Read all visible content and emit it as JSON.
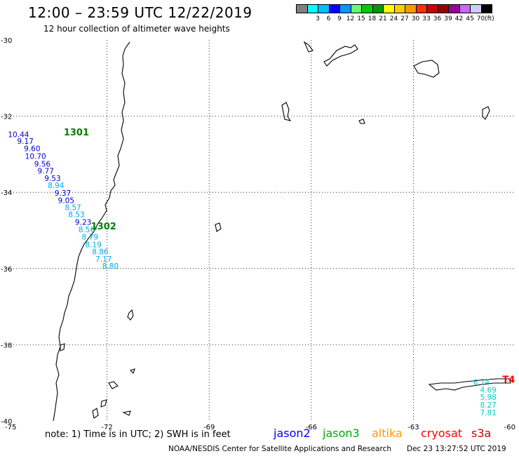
{
  "header": {
    "title": "12:00 – 23:59 UTC 12/22/2019",
    "subtitle": "12 hour collection of altimeter wave heights"
  },
  "colorbar": {
    "unit": "(ft)",
    "colors": [
      "#808080",
      "#00ffff",
      "#00bfff",
      "#0000ff",
      "#0099ff",
      "#66ff66",
      "#00cc00",
      "#009900",
      "#ffff00",
      "#ffcc00",
      "#ff9900",
      "#ff3300",
      "#cc0000",
      "#990000",
      "#990099",
      "#cc66ff",
      "#ccccff",
      "#000000"
    ],
    "labels": [
      "3",
      "6",
      "9",
      "12",
      "15",
      "18",
      "21",
      "24",
      "27",
      "30",
      "33",
      "36",
      "39",
      "42",
      "45",
      "70"
    ]
  },
  "axes": {
    "lat_labels": [
      "-30",
      "-32",
      "-34",
      "-36",
      "-38",
      "-40"
    ],
    "lon_labels": [
      "-75",
      "-72",
      "-69",
      "-66",
      "-63",
      "-60"
    ]
  },
  "chart_data": {
    "type": "scatter",
    "xlim": [
      -75,
      -60
    ],
    "ylim": [
      -40,
      -30
    ],
    "grid": true,
    "buoys": [
      {
        "id": "1301",
        "lon": -72.9,
        "lat": -32.5,
        "color": "#008000"
      },
      {
        "id": "1302",
        "lon": -72.1,
        "lat": -34.97,
        "color": "#008000"
      },
      {
        "id": "T4",
        "lon": -60.2,
        "lat": -39.0,
        "color": "#ff0000"
      }
    ],
    "observations": [
      {
        "value": "10.44",
        "lon": -74.6,
        "lat": -32.55,
        "color": "#0000cc"
      },
      {
        "value": "9.17",
        "lon": -74.4,
        "lat": -32.73,
        "color": "#0000cc"
      },
      {
        "value": "9.60",
        "lon": -74.2,
        "lat": -32.92,
        "color": "#0000cc"
      },
      {
        "value": "10.70",
        "lon": -74.1,
        "lat": -33.12,
        "color": "#0000cc"
      },
      {
        "value": "9.56",
        "lon": -73.9,
        "lat": -33.32,
        "color": "#0000cc"
      },
      {
        "value": "9.77",
        "lon": -73.8,
        "lat": -33.51,
        "color": "#0000cc"
      },
      {
        "value": "9.53",
        "lon": -73.6,
        "lat": -33.7,
        "color": "#0000cc"
      },
      {
        "value": "8.94",
        "lon": -73.5,
        "lat": -33.89,
        "color": "#00aaee"
      },
      {
        "value": "9.37",
        "lon": -73.3,
        "lat": -34.09,
        "color": "#0000cc"
      },
      {
        "value": "9.05",
        "lon": -73.2,
        "lat": -34.28,
        "color": "#0000cc"
      },
      {
        "value": "8.57",
        "lon": -73.0,
        "lat": -34.47,
        "color": "#00aaee"
      },
      {
        "value": "8.53",
        "lon": -72.9,
        "lat": -34.65,
        "color": "#00aaee"
      },
      {
        "value": "9.23",
        "lon": -72.7,
        "lat": -34.85,
        "color": "#0000cc"
      },
      {
        "value": "8.56",
        "lon": -72.6,
        "lat": -35.05,
        "color": "#00aaee"
      },
      {
        "value": "8.79",
        "lon": -72.5,
        "lat": -35.24,
        "color": "#00aaee"
      },
      {
        "value": "8.19",
        "lon": -72.4,
        "lat": -35.44,
        "color": "#00aaee"
      },
      {
        "value": "8.86",
        "lon": -72.2,
        "lat": -35.63,
        "color": "#00aaee"
      },
      {
        "value": "7.17",
        "lon": -72.1,
        "lat": -35.82,
        "color": "#00aaee"
      },
      {
        "value": "8.80",
        "lon": -71.9,
        "lat": -36.0,
        "color": "#00aaee"
      },
      {
        "value": "6.74",
        "lon": -61.0,
        "lat": -39.05,
        "color": "#00cccc"
      },
      {
        "value": "4.69",
        "lon": -60.8,
        "lat": -39.25,
        "color": "#00cccc"
      },
      {
        "value": "5.98",
        "lon": -60.8,
        "lat": -39.45,
        "color": "#00cccc"
      },
      {
        "value": "8.27",
        "lon": -60.8,
        "lat": -39.65,
        "color": "#00cccc"
      },
      {
        "value": "7.81",
        "lon": -60.8,
        "lat": -39.85,
        "color": "#00cccc"
      }
    ]
  },
  "note": "note:  1) Time is in UTC; 2) SWH is in feet",
  "legend": [
    {
      "name": "jason2",
      "color": "#0000ff"
    },
    {
      "name": "jason3",
      "color": "#00aa00"
    },
    {
      "name": "altika",
      "color": "#ff9900"
    },
    {
      "name": "cryosat",
      "color": "#ff0000"
    },
    {
      "name": "s3a",
      "color": "#cc0000"
    }
  ],
  "footer": {
    "credit": "NOAA/NESDIS Center for Satellite Applications and Research",
    "timestamp": "Dec 23 13:27:52 UTC 2019"
  }
}
